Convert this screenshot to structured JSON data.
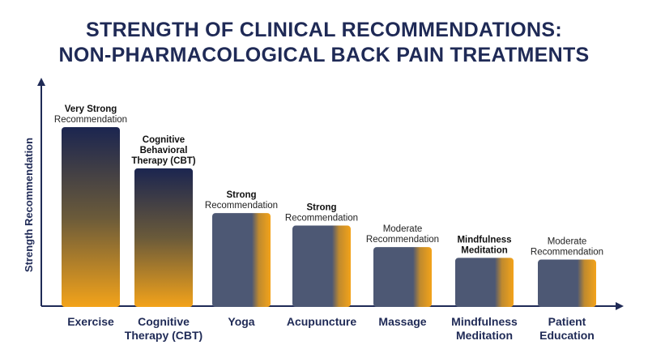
{
  "chart_data": {
    "type": "bar",
    "title": [
      "STRENGTH OF CLINICAL RECOMMENDATIONS:",
      "NON-PHARMACOLOGICAL BACK PAIN TREATMENTS"
    ],
    "ylabel": "Strength Recommendation",
    "xlabel": "",
    "ylim": [
      0,
      100
    ],
    "categories": [
      [
        "Exercise"
      ],
      [
        "Cognitive",
        "Therapy (CBT)"
      ],
      [
        "Yoga"
      ],
      [
        "Acupuncture"
      ],
      [
        "Massage"
      ],
      [
        "Mindfulness",
        "Meditation"
      ],
      [
        "Patient",
        "Education"
      ]
    ],
    "values": [
      100,
      77,
      52,
      45,
      33,
      27,
      26
    ],
    "bar_labels": [
      [
        {
          "text": "Very Strong",
          "bold": true
        },
        {
          "text": "Recommendation",
          "bold": false
        }
      ],
      [
        {
          "text": "Cognitive",
          "bold": true
        },
        {
          "text": "Behavioral",
          "bold": true
        },
        {
          "text": "Therapy (CBT)",
          "bold": true
        }
      ],
      [
        {
          "text": "Strong",
          "bold": true
        },
        {
          "text": "Recommendation",
          "bold": false
        }
      ],
      [
        {
          "text": "Strong",
          "bold": true
        },
        {
          "text": "Recommendation",
          "bold": false
        }
      ],
      [
        {
          "text": "Moderate",
          "bold": false
        },
        {
          "text": "Recommendation",
          "bold": false
        }
      ],
      [
        {
          "text": "Mindfulness",
          "bold": true
        },
        {
          "text": "Meditation",
          "bold": true
        }
      ],
      [
        {
          "text": "Moderate",
          "bold": false
        },
        {
          "text": "Recommendation",
          "bold": false
        }
      ]
    ],
    "bar_styles": [
      "gradient",
      "gradient",
      "slate",
      "slate",
      "slate",
      "slate",
      "slate"
    ],
    "grid": false,
    "legend": "none"
  },
  "colors": {
    "navy": "#1b2550",
    "gold": "#f3a31a",
    "slate": "#4d5874",
    "axis": "#1f2a56"
  }
}
